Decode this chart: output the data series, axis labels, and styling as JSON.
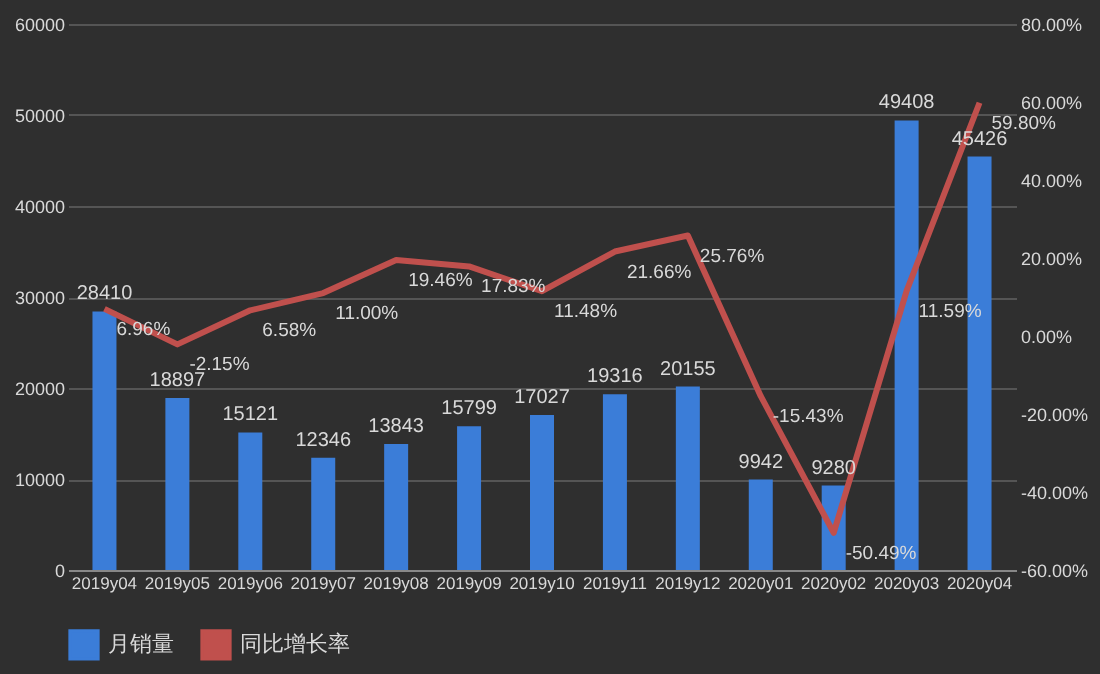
{
  "chart_data": {
    "type": "bar",
    "categories": [
      "2019y04",
      "2019y05",
      "2019y06",
      "2019y07",
      "2019y08",
      "2019y09",
      "2019y10",
      "2019y11",
      "2019y12",
      "2020y01",
      "2020y02",
      "2020y03",
      "2020y04"
    ],
    "series": [
      {
        "name": "月销量",
        "color": "#3b7dd8",
        "values": [
          28410,
          18897,
          15121,
          12346,
          13843,
          15799,
          17027,
          19316,
          20155,
          9942,
          9280,
          49408,
          45426
        ]
      },
      {
        "name": "同比增长率",
        "type": "line",
        "axis": "y2",
        "color": "#c0504d",
        "values": [
          6.96,
          -2.15,
          6.58,
          11.0,
          19.46,
          17.83,
          11.48,
          21.66,
          25.76,
          -15.43,
          -50.49,
          11.59,
          59.8
        ],
        "value_labels": [
          "6.96%",
          "-2.15%",
          "6.58%",
          "11.00%",
          "19.46%",
          "17.83%",
          "11.48%",
          "21.66%",
          "25.76%",
          "-15.43%",
          "-50.49%",
          "11.59%",
          "59.80%"
        ]
      }
    ],
    "ylim": [
      0,
      60000
    ],
    "yticks": [
      0,
      10000,
      20000,
      30000,
      40000,
      50000,
      60000
    ],
    "y2lim": [
      -60,
      80
    ],
    "y2ticks": [
      {
        "value": -60,
        "label": "-60.00%"
      },
      {
        "value": -40,
        "label": "-40.00%"
      },
      {
        "value": -20,
        "label": "-20.00%"
      },
      {
        "value": 0,
        "label": "0.00%"
      },
      {
        "value": 20,
        "label": "20.00%"
      },
      {
        "value": 40,
        "label": "40.00%"
      },
      {
        "value": 60,
        "label": "60.00%"
      },
      {
        "value": 80,
        "label": "80.00%"
      }
    ],
    "grid": "y",
    "legend": "bottom",
    "data_labels": true,
    "marker": "none",
    "line_style": "solid"
  }
}
